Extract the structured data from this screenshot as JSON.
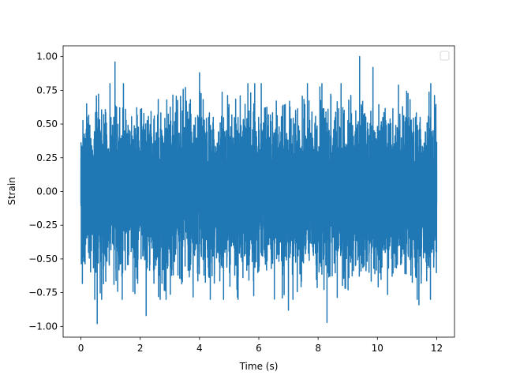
{
  "chart_data": {
    "type": "line",
    "title": "",
    "xlabel": "Time (s)",
    "ylabel": "Strain",
    "xlim": [
      -0.6,
      12.6
    ],
    "ylim": [
      -1.08,
      1.08
    ],
    "xticks": [
      0,
      2,
      4,
      6,
      8,
      10,
      12
    ],
    "xtick_labels": [
      "0",
      "2",
      "4",
      "6",
      "8",
      "10",
      "12"
    ],
    "yticks": [
      -1.0,
      -0.75,
      -0.5,
      -0.25,
      0.0,
      0.25,
      0.5,
      0.75,
      1.0
    ],
    "ytick_labels": [
      "−1.00",
      "−0.75",
      "−0.50",
      "−0.25",
      "0.00",
      "0.25",
      "0.50",
      "0.75",
      "1.00"
    ],
    "grid": false,
    "legend": {
      "placement": "top-right",
      "entries": []
    },
    "series": [
      {
        "color": "#1f77b4",
        "x_range": [
          0,
          12
        ],
        "amplitude_range": [
          -1.0,
          1.0
        ],
        "peaks": [
          {
            "x": 0.55,
            "y": 0.84
          },
          {
            "x": 1.15,
            "y": 0.96
          },
          {
            "x": 4.0,
            "y": 0.88
          },
          {
            "x": 9.4,
            "y": 1.0
          },
          {
            "x": 9.85,
            "y": 0.92
          },
          {
            "x": 11.8,
            "y": 0.8
          },
          {
            "x": 0.55,
            "y": -0.98
          },
          {
            "x": 2.2,
            "y": -0.92
          },
          {
            "x": 7.0,
            "y": -0.88
          },
          {
            "x": 8.3,
            "y": -0.97
          },
          {
            "x": 11.4,
            "y": -0.84
          },
          {
            "x": 5.3,
            "y": -0.8
          }
        ]
      }
    ]
  }
}
